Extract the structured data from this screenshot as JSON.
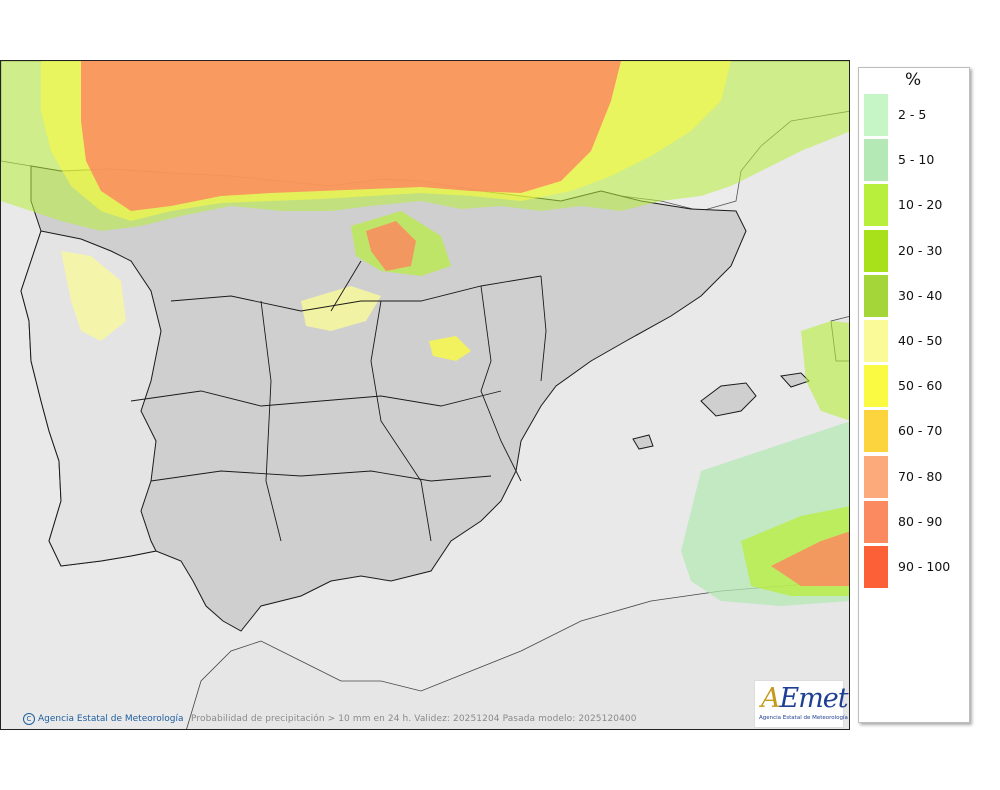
{
  "map": {
    "copyright_text": "Agencia Estatal de Meteorología",
    "caption": "Probabilidad de precipitación > 10 mm en 24 h. Validez: 20251204 Pasada modelo: 2025120400",
    "logo": {
      "wordmark_a": "A",
      "wordmark_rest": "Emet",
      "subtitle": "Agencia Estatal de Meteorología"
    },
    "colors": {
      "sea": "#e9e9e9",
      "land": "#cfcfcf",
      "border": "#1a1a1a"
    }
  },
  "legend": {
    "unit": "%",
    "items": [
      {
        "label": "2 - 5",
        "color": "#c6f5c6"
      },
      {
        "label": "5 - 10",
        "color": "#b4e8b4"
      },
      {
        "label": "10 - 20",
        "color": "#b8ee3c"
      },
      {
        "label": "20 - 30",
        "color": "#a8e01a"
      },
      {
        "label": "30 - 40",
        "color": "#a4d63a"
      },
      {
        "label": "40 - 50",
        "color": "#fafa98"
      },
      {
        "label": "50 - 60",
        "color": "#fafa42"
      },
      {
        "label": "60 - 70",
        "color": "#fcd43e"
      },
      {
        "label": "70 - 80",
        "color": "#fcaa7c"
      },
      {
        "label": "80 - 90",
        "color": "#fc8a60"
      },
      {
        "label": "90 - 100",
        "color": "#fc6036"
      }
    ]
  }
}
